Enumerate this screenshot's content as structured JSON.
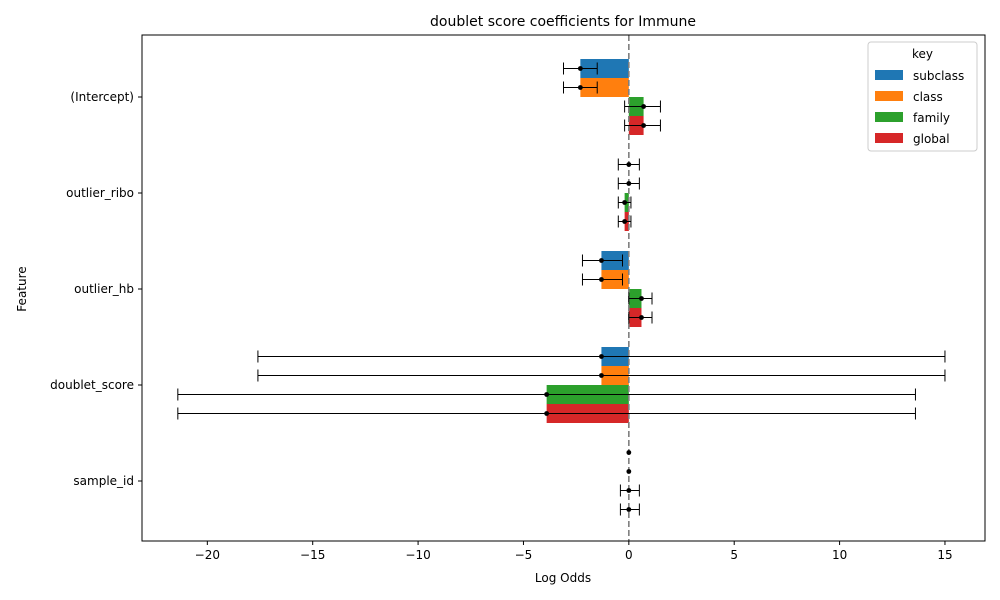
{
  "chart_data": {
    "type": "bar",
    "orientation": "horizontal",
    "title": "doublet score coefficients for Immune",
    "xlabel": "Log Odds",
    "ylabel": "Feature",
    "xlim": [
      -23.1,
      16.9
    ],
    "xticks": [
      -20,
      -15,
      -10,
      -5,
      0,
      5,
      10,
      15
    ],
    "xtick_labels": [
      "−20",
      "−15",
      "−10",
      "−5",
      "0",
      "5",
      "10",
      "15"
    ],
    "categories": [
      "(Intercept)",
      "outlier_ribo",
      "outlier_hb",
      "doublet_score",
      "sample_id"
    ],
    "reference_line": {
      "x": 0,
      "style": "dashed"
    },
    "grid": false,
    "legend": {
      "title": "key",
      "position": "top-right"
    },
    "series": [
      {
        "name": "subclass",
        "color": "#1f77b4",
        "values": [
          -2.3,
          0.0,
          -1.3,
          -1.3,
          0.0
        ],
        "err_low": [
          -3.1,
          -0.5,
          -2.2,
          -17.6,
          0.0
        ],
        "err_high": [
          -1.5,
          0.5,
          -0.3,
          15.0,
          0.0
        ]
      },
      {
        "name": "class",
        "color": "#ff7f0e",
        "values": [
          -2.3,
          0.0,
          -1.3,
          -1.3,
          0.0
        ],
        "err_low": [
          -3.1,
          -0.5,
          -2.2,
          -17.6,
          0.0
        ],
        "err_high": [
          -1.5,
          0.5,
          -0.3,
          15.0,
          0.0
        ]
      },
      {
        "name": "family",
        "color": "#2ca02c",
        "values": [
          0.7,
          -0.2,
          0.6,
          -3.9,
          0.0
        ],
        "err_low": [
          -0.2,
          -0.5,
          0.0,
          -21.4,
          -0.4
        ],
        "err_high": [
          1.5,
          0.1,
          1.1,
          13.6,
          0.5
        ]
      },
      {
        "name": "global",
        "color": "#d62728",
        "values": [
          0.7,
          -0.2,
          0.6,
          -3.9,
          0.0
        ],
        "err_low": [
          -0.2,
          -0.5,
          0.0,
          -21.4,
          -0.4
        ],
        "err_high": [
          1.5,
          0.1,
          1.1,
          13.6,
          0.5
        ]
      }
    ]
  }
}
